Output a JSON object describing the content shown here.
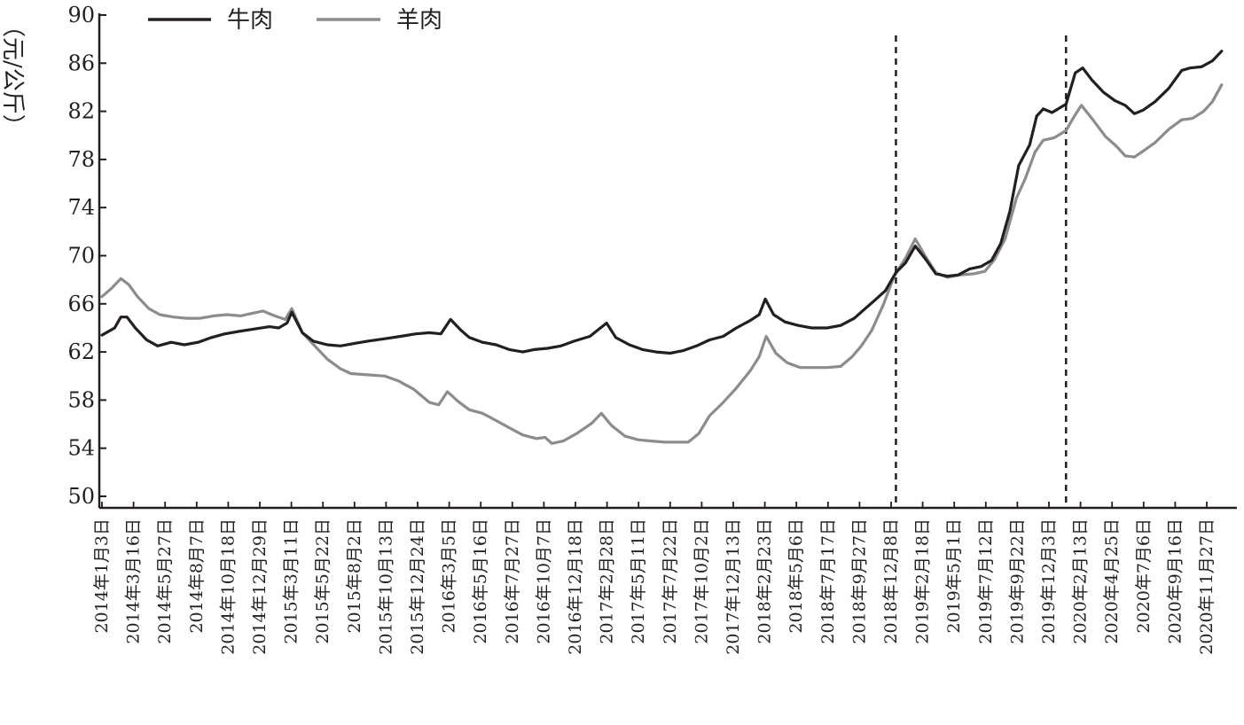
{
  "chart_data": {
    "type": "line",
    "ylabel": "（元/公斤）",
    "ylim": [
      50,
      90
    ],
    "yticks": [
      50,
      54,
      58,
      62,
      66,
      70,
      74,
      78,
      82,
      86,
      90
    ],
    "x_tick_labels": [
      "2014年1月3日",
      "2014年3月16日",
      "2014年5月27日",
      "2014年8月7日",
      "2014年10月18日",
      "2014年12月29日",
      "2015年3月11日",
      "2015年5月22日",
      "2015年8月2日",
      "2015年10月13日",
      "2015年12月24日",
      "2016年3月5日",
      "2016年5月16日",
      "2016年7月27日",
      "2016年10月7日",
      "2016年12月18日",
      "2017年2月28日",
      "2017年5月11日",
      "2017年7月22日",
      "2017年10月2日",
      "2017年12月13日",
      "2018年2月23日",
      "2018年5月6日",
      "2018年7月17日",
      "2018年9月27日",
      "2018年12月8日",
      "2019年2月18日",
      "2019年5月1日",
      "2019年7月12日",
      "2019年9月22日",
      "2019年12月3日",
      "2020年2月13日",
      "2020年4月25日",
      "2020年7月6日",
      "2020年9月16日",
      "2020年11月27日"
    ],
    "x_dates": [
      "2014-01-03",
      "2014-03-16",
      "2014-05-27",
      "2014-08-07",
      "2014-10-18",
      "2014-12-29",
      "2015-03-11",
      "2015-05-22",
      "2015-08-02",
      "2015-10-13",
      "2015-12-24",
      "2016-03-05",
      "2016-05-16",
      "2016-07-27",
      "2016-10-07",
      "2016-12-18",
      "2017-02-28",
      "2017-05-11",
      "2017-07-22",
      "2017-10-02",
      "2017-12-13",
      "2018-02-23",
      "2018-05-06",
      "2018-07-17",
      "2018-09-27",
      "2018-12-08",
      "2019-02-18",
      "2019-05-01",
      "2019-07-12",
      "2019-09-22",
      "2019-12-03",
      "2020-02-13",
      "2020-04-25",
      "2020-07-06",
      "2020-09-16",
      "2020-11-27"
    ],
    "reference_lines": [
      "2018-12-19",
      "2020-01-11"
    ],
    "legend": {
      "position": "top-left"
    },
    "grid": false,
    "series": [
      {
        "name": "牛肉",
        "color": "#231f20",
        "points": [
          [
            "2014-01-03",
            63.4
          ],
          [
            "2014-02-01",
            64.0
          ],
          [
            "2014-02-15",
            64.9
          ],
          [
            "2014-03-01",
            64.9
          ],
          [
            "2014-03-20",
            64.0
          ],
          [
            "2014-04-15",
            63.0
          ],
          [
            "2014-05-10",
            62.5
          ],
          [
            "2014-06-10",
            62.8
          ],
          [
            "2014-07-10",
            62.6
          ],
          [
            "2014-08-10",
            62.8
          ],
          [
            "2014-09-10",
            63.2
          ],
          [
            "2014-10-10",
            63.5
          ],
          [
            "2014-11-10",
            63.7
          ],
          [
            "2014-12-15",
            63.9
          ],
          [
            "2015-01-20",
            64.1
          ],
          [
            "2015-02-10",
            64.0
          ],
          [
            "2015-03-01",
            64.4
          ],
          [
            "2015-03-12",
            65.3
          ],
          [
            "2015-04-05",
            63.6
          ],
          [
            "2015-04-30",
            62.9
          ],
          [
            "2015-06-01",
            62.6
          ],
          [
            "2015-07-01",
            62.5
          ],
          [
            "2015-08-01",
            62.7
          ],
          [
            "2015-09-01",
            62.9
          ],
          [
            "2015-10-10",
            63.1
          ],
          [
            "2015-11-15",
            63.3
          ],
          [
            "2015-12-20",
            63.5
          ],
          [
            "2016-01-20",
            63.6
          ],
          [
            "2016-02-15",
            63.5
          ],
          [
            "2016-03-08",
            64.7
          ],
          [
            "2016-04-01",
            63.8
          ],
          [
            "2016-04-20",
            63.2
          ],
          [
            "2016-05-20",
            62.8
          ],
          [
            "2016-06-20",
            62.6
          ],
          [
            "2016-07-20",
            62.2
          ],
          [
            "2016-08-20",
            62.0
          ],
          [
            "2016-09-15",
            62.2
          ],
          [
            "2016-10-15",
            62.3
          ],
          [
            "2016-11-15",
            62.5
          ],
          [
            "2016-12-15",
            62.9
          ],
          [
            "2017-01-20",
            63.3
          ],
          [
            "2017-02-27",
            64.4
          ],
          [
            "2017-03-20",
            63.2
          ],
          [
            "2017-04-20",
            62.6
          ],
          [
            "2017-05-20",
            62.2
          ],
          [
            "2017-06-20",
            62.0
          ],
          [
            "2017-07-22",
            61.9
          ],
          [
            "2017-08-20",
            62.1
          ],
          [
            "2017-09-20",
            62.5
          ],
          [
            "2017-10-20",
            63.0
          ],
          [
            "2017-11-20",
            63.3
          ],
          [
            "2017-12-20",
            64.0
          ],
          [
            "2018-01-20",
            64.6
          ],
          [
            "2018-02-10",
            65.1
          ],
          [
            "2018-02-24",
            66.4
          ],
          [
            "2018-03-15",
            65.1
          ],
          [
            "2018-04-10",
            64.5
          ],
          [
            "2018-05-10",
            64.2
          ],
          [
            "2018-06-10",
            64.0
          ],
          [
            "2018-07-15",
            64.0
          ],
          [
            "2018-08-15",
            64.2
          ],
          [
            "2018-09-15",
            64.8
          ],
          [
            "2018-10-10",
            65.6
          ],
          [
            "2018-11-01",
            66.3
          ],
          [
            "2018-11-25",
            67.1
          ],
          [
            "2018-12-19",
            68.6
          ],
          [
            "2019-01-10",
            69.4
          ],
          [
            "2019-02-01",
            70.8
          ],
          [
            "2019-02-25",
            69.7
          ],
          [
            "2019-03-20",
            68.5
          ],
          [
            "2019-04-15",
            68.3
          ],
          [
            "2019-05-10",
            68.4
          ],
          [
            "2019-06-05",
            68.9
          ],
          [
            "2019-07-01",
            69.1
          ],
          [
            "2019-07-25",
            69.6
          ],
          [
            "2019-08-15",
            71.0
          ],
          [
            "2019-09-05",
            73.7
          ],
          [
            "2019-09-25",
            77.5
          ],
          [
            "2019-10-20",
            79.2
          ],
          [
            "2019-11-05",
            81.6
          ],
          [
            "2019-11-20",
            82.2
          ],
          [
            "2019-12-10",
            81.9
          ],
          [
            "2020-01-11",
            82.6
          ],
          [
            "2020-02-01",
            85.2
          ],
          [
            "2020-02-18",
            85.6
          ],
          [
            "2020-03-10",
            84.6
          ],
          [
            "2020-04-05",
            83.6
          ],
          [
            "2020-05-01",
            82.9
          ],
          [
            "2020-05-25",
            82.5
          ],
          [
            "2020-06-15",
            81.8
          ],
          [
            "2020-07-05",
            82.1
          ],
          [
            "2020-08-01",
            82.8
          ],
          [
            "2020-09-01",
            83.9
          ],
          [
            "2020-10-01",
            85.4
          ],
          [
            "2020-10-20",
            85.6
          ],
          [
            "2020-11-15",
            85.7
          ],
          [
            "2020-12-10",
            86.2
          ],
          [
            "2020-12-31",
            87.0
          ]
        ]
      },
      {
        "name": "羊肉",
        "color": "#8c8c8c",
        "points": [
          [
            "2014-01-03",
            66.6
          ],
          [
            "2014-01-25",
            67.3
          ],
          [
            "2014-02-15",
            68.1
          ],
          [
            "2014-03-05",
            67.6
          ],
          [
            "2014-03-25",
            66.6
          ],
          [
            "2014-04-20",
            65.6
          ],
          [
            "2014-05-15",
            65.1
          ],
          [
            "2014-06-15",
            64.9
          ],
          [
            "2014-07-15",
            64.8
          ],
          [
            "2014-08-15",
            64.8
          ],
          [
            "2014-09-15",
            65.0
          ],
          [
            "2014-10-15",
            65.1
          ],
          [
            "2014-11-15",
            65.0
          ],
          [
            "2014-12-10",
            65.2
          ],
          [
            "2015-01-05",
            65.4
          ],
          [
            "2015-02-01",
            65.0
          ],
          [
            "2015-02-25",
            64.7
          ],
          [
            "2015-03-12",
            65.6
          ],
          [
            "2015-04-05",
            63.6
          ],
          [
            "2015-05-01",
            62.6
          ],
          [
            "2015-06-01",
            61.4
          ],
          [
            "2015-07-01",
            60.6
          ],
          [
            "2015-07-25",
            60.2
          ],
          [
            "2015-09-01",
            60.1
          ],
          [
            "2015-10-10",
            60.0
          ],
          [
            "2015-11-10",
            59.6
          ],
          [
            "2015-12-15",
            58.9
          ],
          [
            "2016-01-20",
            57.8
          ],
          [
            "2016-02-10",
            57.6
          ],
          [
            "2016-03-01",
            58.7
          ],
          [
            "2016-03-25",
            57.9
          ],
          [
            "2016-04-20",
            57.2
          ],
          [
            "2016-05-20",
            56.9
          ],
          [
            "2016-06-20",
            56.3
          ],
          [
            "2016-07-20",
            55.7
          ],
          [
            "2016-08-20",
            55.1
          ],
          [
            "2016-09-20",
            54.8
          ],
          [
            "2016-10-10",
            54.9
          ],
          [
            "2016-10-25",
            54.4
          ],
          [
            "2016-11-20",
            54.6
          ],
          [
            "2016-12-20",
            55.2
          ],
          [
            "2017-01-25",
            56.1
          ],
          [
            "2017-02-15",
            56.9
          ],
          [
            "2017-03-10",
            55.9
          ],
          [
            "2017-04-10",
            55.0
          ],
          [
            "2017-05-10",
            54.7
          ],
          [
            "2017-06-10",
            54.6
          ],
          [
            "2017-07-10",
            54.5
          ],
          [
            "2017-08-10",
            54.5
          ],
          [
            "2017-09-01",
            54.5
          ],
          [
            "2017-09-25",
            55.2
          ],
          [
            "2017-10-20",
            56.7
          ],
          [
            "2017-11-20",
            57.8
          ],
          [
            "2017-12-20",
            59.0
          ],
          [
            "2018-01-20",
            60.4
          ],
          [
            "2018-02-10",
            61.6
          ],
          [
            "2018-02-26",
            63.3
          ],
          [
            "2018-03-20",
            61.9
          ],
          [
            "2018-04-15",
            61.1
          ],
          [
            "2018-05-15",
            60.7
          ],
          [
            "2018-06-15",
            60.7
          ],
          [
            "2018-07-15",
            60.7
          ],
          [
            "2018-08-15",
            60.8
          ],
          [
            "2018-09-10",
            61.6
          ],
          [
            "2018-10-01",
            62.5
          ],
          [
            "2018-10-25",
            63.8
          ],
          [
            "2018-11-20",
            65.9
          ],
          [
            "2018-12-15",
            68.3
          ],
          [
            "2019-01-10",
            69.8
          ],
          [
            "2019-02-01",
            71.4
          ],
          [
            "2019-02-25",
            69.9
          ],
          [
            "2019-03-20",
            68.6
          ],
          [
            "2019-04-15",
            68.2
          ],
          [
            "2019-05-15",
            68.4
          ],
          [
            "2019-06-15",
            68.5
          ],
          [
            "2019-07-10",
            68.7
          ],
          [
            "2019-08-01",
            69.7
          ],
          [
            "2019-08-25",
            71.4
          ],
          [
            "2019-09-20",
            74.8
          ],
          [
            "2019-10-10",
            76.4
          ],
          [
            "2019-11-01",
            78.6
          ],
          [
            "2019-11-20",
            79.6
          ],
          [
            "2019-12-15",
            79.8
          ],
          [
            "2020-01-11",
            80.4
          ],
          [
            "2020-01-30",
            81.6
          ],
          [
            "2020-02-15",
            82.5
          ],
          [
            "2020-03-10",
            81.4
          ],
          [
            "2020-04-10",
            79.9
          ],
          [
            "2020-05-05",
            79.1
          ],
          [
            "2020-05-25",
            78.3
          ],
          [
            "2020-06-15",
            78.2
          ],
          [
            "2020-07-05",
            78.7
          ],
          [
            "2020-08-01",
            79.4
          ],
          [
            "2020-09-01",
            80.5
          ],
          [
            "2020-10-01",
            81.3
          ],
          [
            "2020-10-25",
            81.4
          ],
          [
            "2020-11-20",
            82.0
          ],
          [
            "2020-12-10",
            82.8
          ],
          [
            "2020-12-31",
            84.2
          ]
        ]
      }
    ]
  }
}
